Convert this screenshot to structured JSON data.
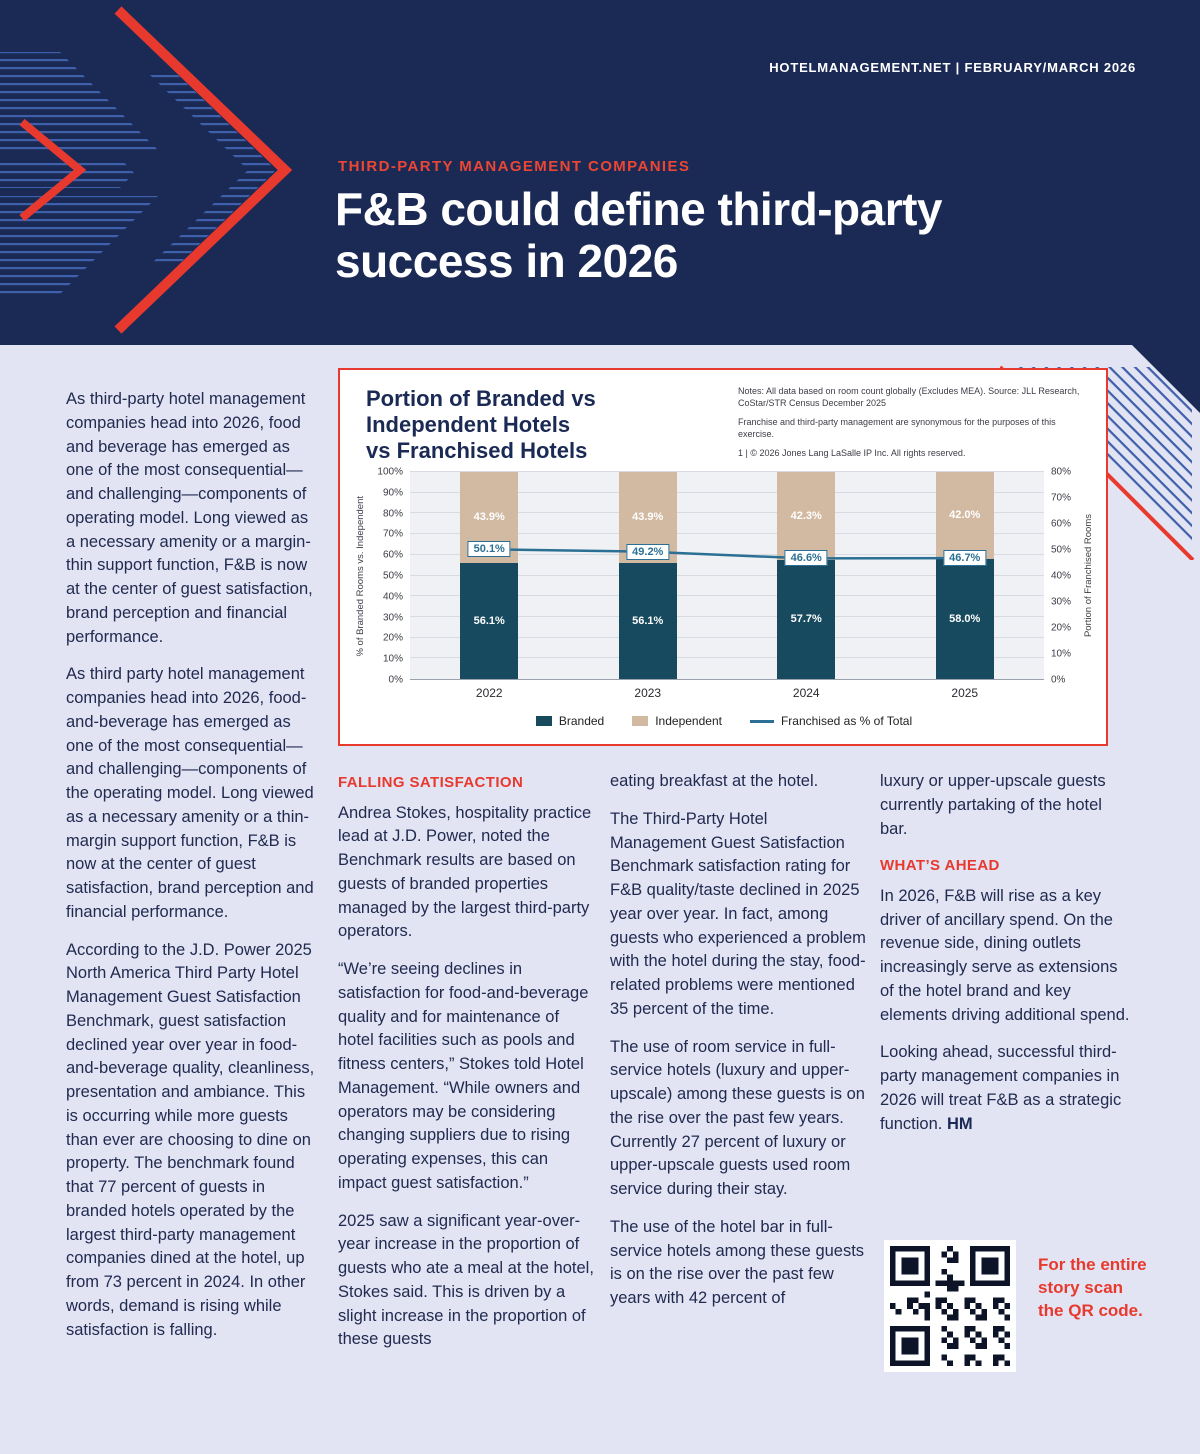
{
  "colors": {
    "navy": "#1B2A55",
    "accent_red": "#E8392E",
    "page_background": "#E2E4F3",
    "body_text": "#212B50",
    "stripe_blue": "#3E5FA9"
  },
  "header": {
    "masthead": "HOTELMANAGEMENT.NET  |  FEBRUARY/MARCH 2026",
    "kicker": "THIRD-PARTY MANAGEMENT COMPANIES",
    "headline": "F&B could define third-party\nsuccess in 2026"
  },
  "chart_panel": {
    "title": "Portion of Branded vs\nIndependent Hotels\nvs Franchised Hotels",
    "notes": [
      "Notes: All data based on room count globally (Excludes MEA). Source: JLL Research, CoStar/STR Census December 2025",
      "Franchise and third-party management are synonymous for the purposes of this exercise.",
      "1 | © 2026 Jones Lang LaSalle IP Inc. All rights reserved."
    ]
  },
  "chart_data": {
    "type": "bar",
    "subtype": "stacked-100-bar-with-line",
    "title": "Portion of Branded vs Independent Hotels vs Franchised Hotels",
    "categories": [
      "2022",
      "2023",
      "2024",
      "2025"
    ],
    "series": [
      {
        "name": "Branded",
        "type": "bar",
        "axis": "left",
        "color": "#174A5E",
        "values": [
          56.1,
          56.1,
          57.7,
          58.0
        ],
        "labels": [
          "56.1%",
          "56.1%",
          "57.7%",
          "58.0%"
        ]
      },
      {
        "name": "Independent",
        "type": "bar",
        "axis": "left",
        "color": "#D2B9A2",
        "values": [
          43.9,
          43.9,
          42.3,
          42.0
        ],
        "labels": [
          "43.9%",
          "43.9%",
          "42.3%",
          "42.0%"
        ]
      },
      {
        "name": "Franchised as % of Total",
        "type": "line",
        "axis": "right",
        "color": "#2B7094",
        "values": [
          50.1,
          49.2,
          46.6,
          46.7
        ],
        "labels": [
          "50.1%",
          "49.2%",
          "46.6%",
          "46.7%"
        ]
      }
    ],
    "left_axis": {
      "label": "% of Branded Rooms vs. Independent",
      "min": 0,
      "max": 100,
      "step": 10,
      "ticks": [
        "0%",
        "10%",
        "20%",
        "30%",
        "40%",
        "50%",
        "60%",
        "70%",
        "80%",
        "90%",
        "100%"
      ]
    },
    "right_axis": {
      "label": "Portion of Franchised Rooms",
      "min": 0,
      "max": 80,
      "step": 10,
      "ticks": [
        "0%",
        "10%",
        "20%",
        "30%",
        "40%",
        "50%",
        "60%",
        "70%",
        "80%"
      ]
    },
    "grid": true,
    "legend_position": "bottom"
  },
  "article": {
    "col1": {
      "paragraphs": [
        "As third-party hotel management companies head into 2026, food and beverage has emerged as one of the most consequential—and challenging—components of operating model. Long viewed as a necessary amenity or a margin-thin support function, F&B is now at the center of guest satisfaction, brand perception and financial performance.",
        "As third party hotel management companies head into 2026, food-and-beverage has emerged as one of the most consequential—and challenging—components of the operating model. Long viewed as a necessary amenity or a thin-margin support function, F&B is now at the center of guest satisfaction, brand perception and financial performance.",
        "According to the J.D. Power 2025 North America Third Party Hotel Management Guest Satisfaction Benchmark, guest satisfaction declined year over year in food-and-beverage quality, cleanliness, presentation and ambiance. This is occurring while more guests than ever are choosing to dine on property. The benchmark found that 77 percent of guests in branded hotels operated by the largest third-party management companies dined at the hotel, up from 73 percent in 2024. In other words, demand is rising while satisfaction is falling."
      ]
    },
    "col2": {
      "heading": "FALLING SATISFACTION",
      "paragraphs": [
        "Andrea Stokes, hospitality practice lead at J.D. Power, noted the Benchmark results are based on guests of branded properties managed by the largest third-party operators.",
        "“We’re seeing declines in satisfaction for food-and-beverage quality and for maintenance of hotel facilities such as pools and fitness centers,” Stokes told Hotel Management. “While owners and operators may be considering changing suppliers due to rising operating expenses, this can impact guest satisfaction.”",
        "2025 saw a significant year-over-year increase in the proportion of guests who ate a meal at the hotel, Stokes said. This is driven by a slight increase in the proportion of these guests"
      ]
    },
    "col3": {
      "paragraphs": [
        "eating breakfast at the hotel.",
        "The Third-Party Hotel Management Guest Satisfaction Benchmark satisfaction rating for F&B quality/taste declined in 2025 year over year. In fact, among guests who experienced a problem with the hotel during the stay, food-related problems were mentioned 35 percent of the time.",
        "The use of room service in full-service hotels (luxury and upper-upscale) among these guests is on the rise over the past few years. Currently 27 percent of luxury or upper-upscale guests used room service during their stay.",
        "The use of the hotel bar in full-service hotels among these guests is on the rise over the past few years with 42 percent of"
      ]
    },
    "col4": {
      "lead": "luxury or upper-upscale guests currently partaking of the hotel bar.",
      "heading": "WHAT’S AHEAD",
      "paragraphs": [
        "In 2026, F&B will rise as a key driver of ancillary spend. On the revenue side, dining outlets increasingly serve as extensions of the hotel brand and key elements driving additional spend."
      ],
      "closing": "Looking ahead, successful third-party management companies in 2026 will treat F&B as a strategic function.",
      "end_mark": "HM"
    }
  },
  "qr": {
    "caption": "For the entire story scan the QR code."
  }
}
